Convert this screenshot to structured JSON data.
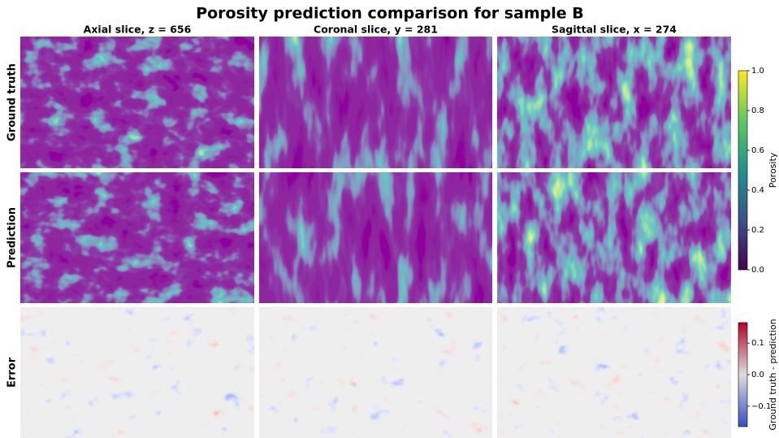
{
  "title": "Porosity prediction comparison for sample B",
  "columns": [
    "Axial slice, z = 656",
    "Coronal slice, y = 281",
    "Sagittal slice, x = 274"
  ],
  "rows": [
    "Ground truth",
    "Prediction",
    "Error"
  ],
  "colorbars": [
    {
      "label": "Porosity",
      "lim": [
        0,
        1
      ],
      "ticks": [
        {
          "value": 0,
          "label": "0.0"
        },
        {
          "value": 0.2,
          "label": "0.2"
        },
        {
          "value": 0.4,
          "label": "0.4"
        },
        {
          "value": 0.6,
          "label": "0.6"
        },
        {
          "value": 0.8,
          "label": "0.8"
        },
        {
          "value": 1,
          "label": "1.0"
        }
      ]
    },
    {
      "label": "Ground truth - prediction",
      "lim": [
        -0.165,
        0.165
      ],
      "ticks": [
        {
          "value": -0.1,
          "label": "−0.1"
        },
        {
          "value": 0,
          "label": "0.0"
        },
        {
          "value": 0.1,
          "label": "0.1"
        }
      ]
    }
  ]
}
